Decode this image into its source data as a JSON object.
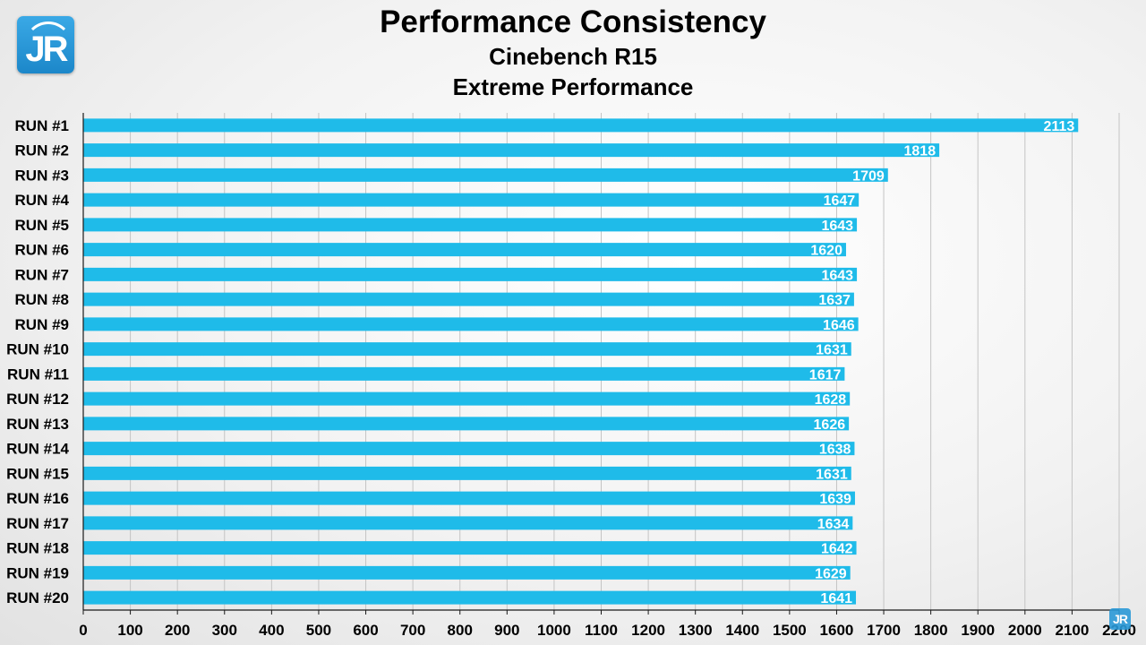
{
  "logo": {
    "text": "JR",
    "watermark_text": "JR"
  },
  "chart_data": {
    "type": "bar",
    "orientation": "horizontal",
    "title": "Performance Consistency",
    "subtitle": "Cinebench R15",
    "subtitle2": "Extreme Performance",
    "categories": [
      "RUN #1",
      "RUN #2",
      "RUN #3",
      "RUN #4",
      "RUN #5",
      "RUN #6",
      "RUN #7",
      "RUN #8",
      "RUN #9",
      "RUN #10",
      "RUN #11",
      "RUN #12",
      "RUN #13",
      "RUN #14",
      "RUN #15",
      "RUN #16",
      "RUN #17",
      "RUN #18",
      "RUN #19",
      "RUN #20"
    ],
    "values": [
      2113,
      1818,
      1709,
      1647,
      1643,
      1620,
      1643,
      1637,
      1646,
      1631,
      1617,
      1628,
      1626,
      1638,
      1631,
      1639,
      1634,
      1642,
      1629,
      1641
    ],
    "xlim": [
      0,
      2200
    ],
    "xticks": [
      0,
      100,
      200,
      300,
      400,
      500,
      600,
      700,
      800,
      900,
      1000,
      1100,
      1200,
      1300,
      1400,
      1500,
      1600,
      1700,
      1800,
      1900,
      2000,
      2100,
      2200
    ],
    "grid": true,
    "xlabel": "",
    "ylabel": "",
    "colors": {
      "bar": "#1fbbe9",
      "grid": "#c4c4c4",
      "axis": "#1a1a1a",
      "label": "#ffffff"
    }
  }
}
